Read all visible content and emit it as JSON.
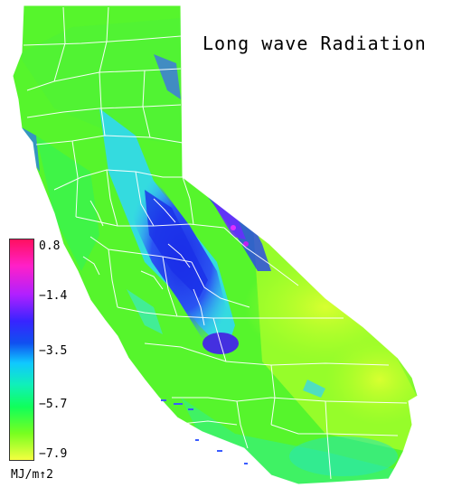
{
  "title": "Long wave Radiation",
  "legend": {
    "ticks": [
      "0.8",
      "−1.4",
      "−3.5",
      "−5.7",
      "−7.9"
    ],
    "unit": "MJ/m↑2",
    "colors": [
      "#ff1060",
      "#e600ff",
      "#6a2cff",
      "#1c28f0",
      "#14b4ff",
      "#12f0d0",
      "#14ff7c",
      "#3cff28",
      "#9cff20",
      "#f2ff30"
    ]
  }
}
